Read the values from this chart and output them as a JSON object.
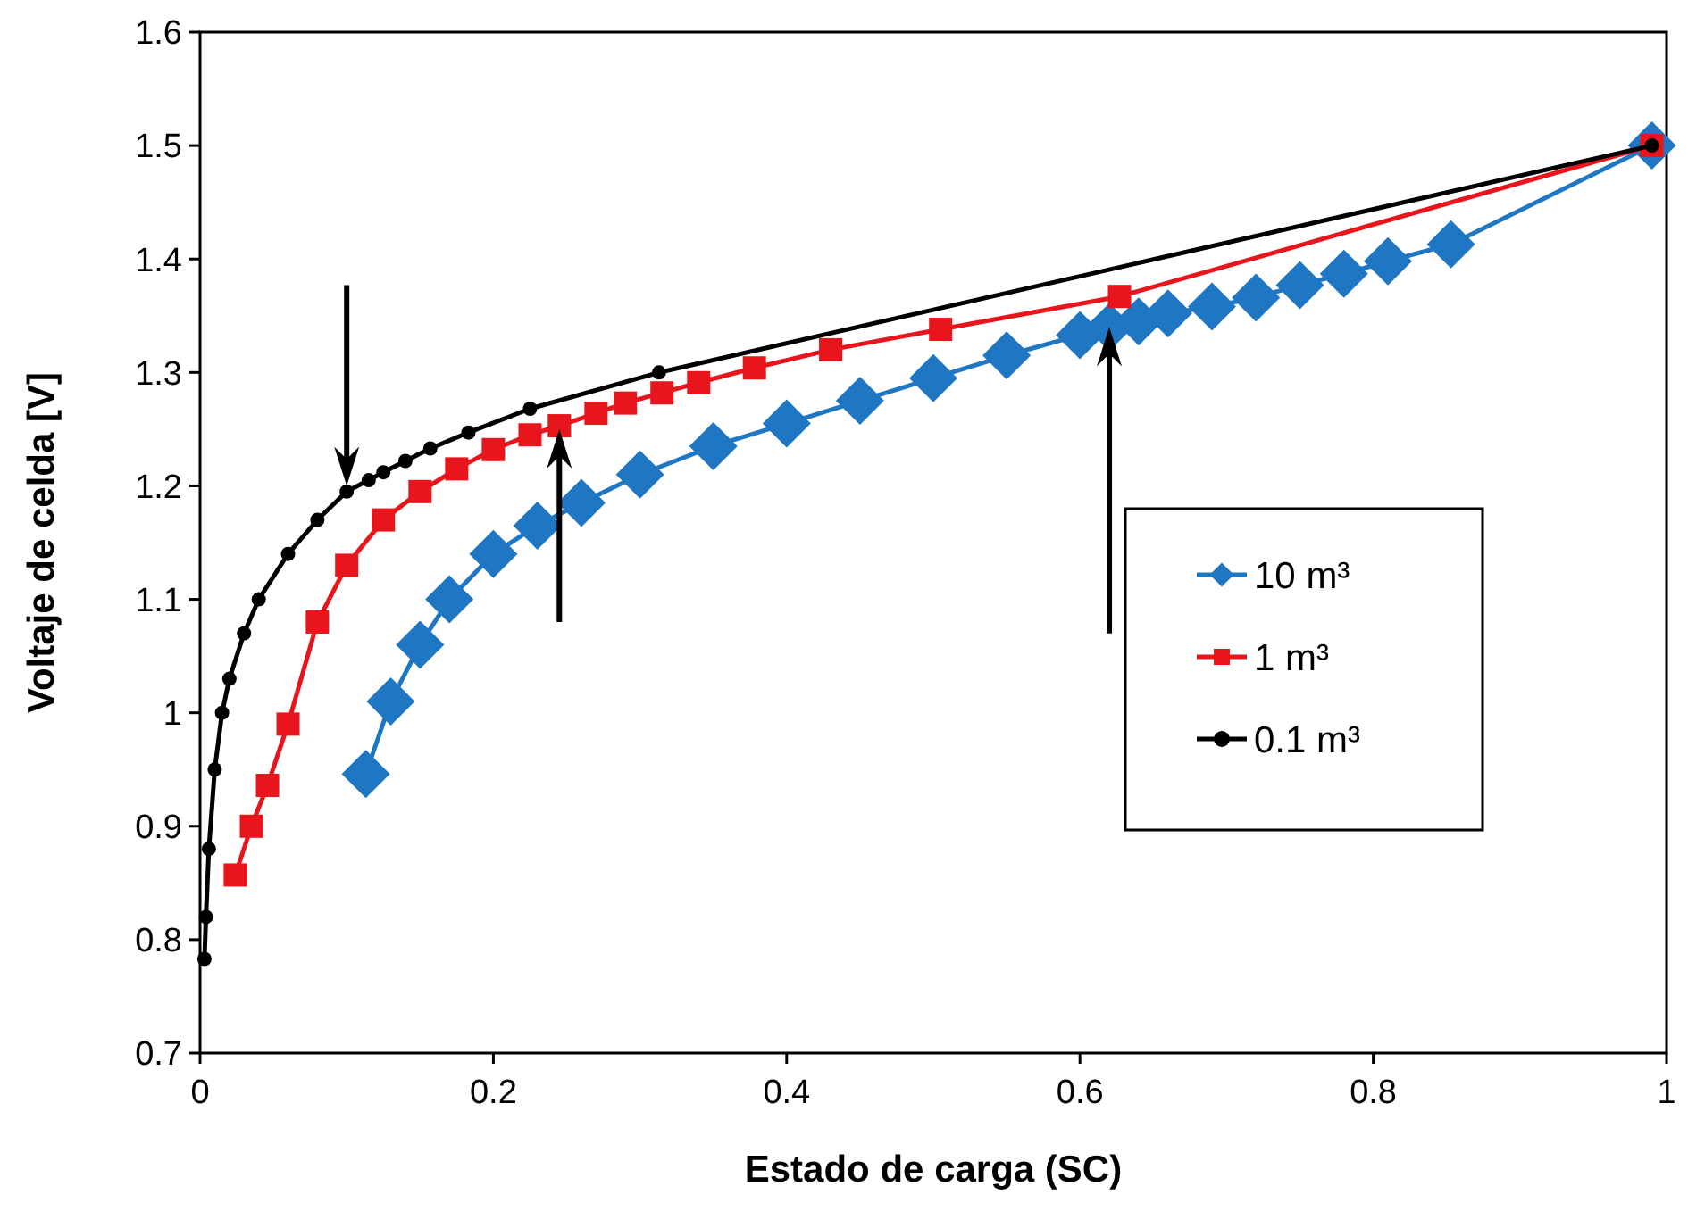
{
  "chart_data": {
    "type": "line",
    "xlabel": "Estado de carga (SC)",
    "ylabel": "Voltaje de celda [V]",
    "xlim": [
      0,
      1
    ],
    "ylim": [
      0.7,
      1.6
    ],
    "xticks": [
      0,
      0.2,
      0.4,
      0.6,
      0.8,
      1
    ],
    "yticks": [
      0.7,
      0.8,
      0.9,
      1,
      1.1,
      1.2,
      1.3,
      1.4,
      1.5,
      1.6
    ],
    "grid": false,
    "legend": "right",
    "line_style": "solid",
    "series": [
      {
        "name": "10 m³",
        "color": "#1f77c4",
        "marker": "diamond",
        "x": [
          0.113,
          0.13,
          0.15,
          0.17,
          0.2,
          0.23,
          0.26,
          0.3,
          0.35,
          0.4,
          0.45,
          0.5,
          0.55,
          0.6,
          0.62,
          0.64,
          0.66,
          0.69,
          0.72,
          0.75,
          0.78,
          0.81,
          0.853,
          0.99
        ],
        "values": [
          0.946,
          1.01,
          1.06,
          1.1,
          1.14,
          1.165,
          1.185,
          1.21,
          1.235,
          1.255,
          1.275,
          1.295,
          1.315,
          1.333,
          1.34,
          1.345,
          1.352,
          1.358,
          1.366,
          1.377,
          1.387,
          1.398,
          1.413,
          1.5
        ]
      },
      {
        "name": "1 m³",
        "color": "#e8161c",
        "marker": "square",
        "x": [
          0.024,
          0.035,
          0.046,
          0.06,
          0.08,
          0.1,
          0.125,
          0.15,
          0.175,
          0.2,
          0.225,
          0.245,
          0.27,
          0.29,
          0.315,
          0.34,
          0.378,
          0.43,
          0.505,
          0.627,
          0.99
        ],
        "values": [
          0.857,
          0.9,
          0.936,
          0.99,
          1.08,
          1.13,
          1.17,
          1.195,
          1.215,
          1.232,
          1.245,
          1.253,
          1.264,
          1.273,
          1.282,
          1.291,
          1.304,
          1.32,
          1.338,
          1.367,
          1.5
        ]
      },
      {
        "name": "0.1 m³",
        "color": "#000000",
        "marker": "circle",
        "x": [
          0.003,
          0.004,
          0.006,
          0.01,
          0.015,
          0.02,
          0.03,
          0.04,
          0.06,
          0.08,
          0.1,
          0.115,
          0.125,
          0.14,
          0.157,
          0.183,
          0.225,
          0.313,
          0.99
        ],
        "values": [
          0.783,
          0.82,
          0.88,
          0.95,
          1.0,
          1.03,
          1.07,
          1.1,
          1.14,
          1.17,
          1.195,
          1.205,
          1.212,
          1.222,
          1.233,
          1.247,
          1.268,
          1.3,
          1.5
        ]
      }
    ]
  }
}
